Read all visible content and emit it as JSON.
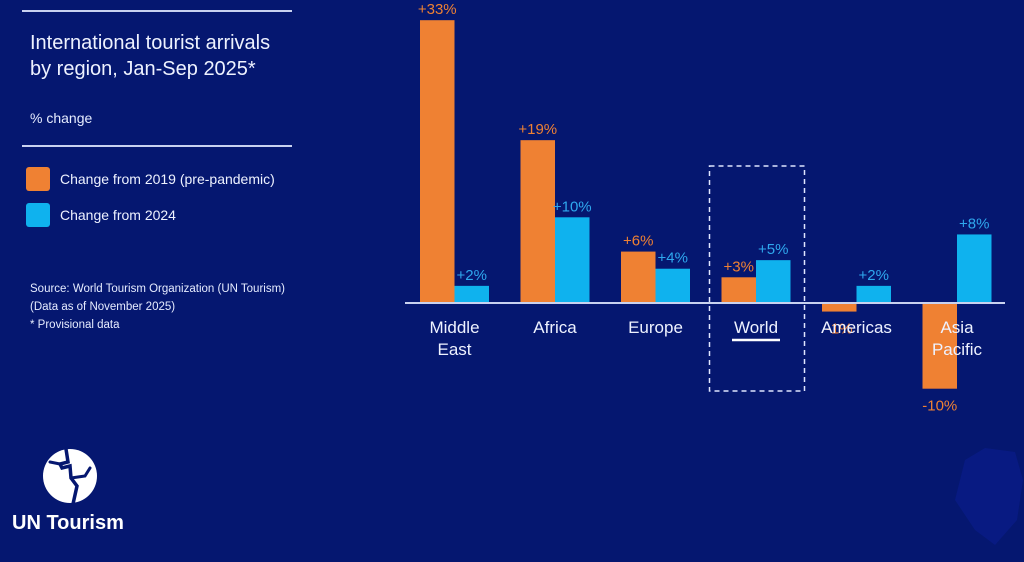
{
  "header": {
    "title_line1": "International tourist arrivals",
    "title_line2": "by region, Jan-Sep 2025*",
    "subtitle": "% change"
  },
  "legend": [
    {
      "label": "Change from 2019 (pre-pandemic)",
      "color": "#EF8133"
    },
    {
      "label": "Change from 2024",
      "color": "#0FB2EE"
    }
  ],
  "source": {
    "line1": "Source: World Tourism Organization (UN Tourism)",
    "line2": "(Data as of November 2025)",
    "line3": "* Provisional data"
  },
  "logo": {
    "text": "UN Tourism"
  },
  "colors": {
    "background": "#051770",
    "orange": "#EF8133",
    "blue": "#0FB2EE",
    "axis": "#c9d2f0"
  },
  "chart_data": {
    "type": "bar",
    "title": "International tourist arrivals by region, Jan-Sep 2025*",
    "ylabel": "% change",
    "xlabel": "",
    "categories": [
      [
        "Middle",
        "East"
      ],
      [
        "Africa"
      ],
      [
        "Europe"
      ],
      [
        "World"
      ],
      [
        "Americas"
      ],
      [
        "Asia",
        "Pacific"
      ]
    ],
    "highlight_category": "World",
    "series": [
      {
        "name": "Change from 2019 (pre-pandemic)",
        "color": "#EF8133",
        "values": [
          33,
          19,
          6,
          3,
          -1,
          -10
        ],
        "labels": [
          "+33%",
          "+19%",
          "+6%",
          "+3%",
          "-1%",
          "-10%"
        ]
      },
      {
        "name": "Change from 2024",
        "color": "#0FB2EE",
        "values": [
          2,
          10,
          4,
          5,
          2,
          8
        ],
        "labels": [
          "+2%",
          "+10%",
          "+4%",
          "+5%",
          "+2%",
          "+8%"
        ]
      }
    ],
    "ylim": [
      -10,
      33
    ],
    "grid": false,
    "legend_position": "left"
  }
}
